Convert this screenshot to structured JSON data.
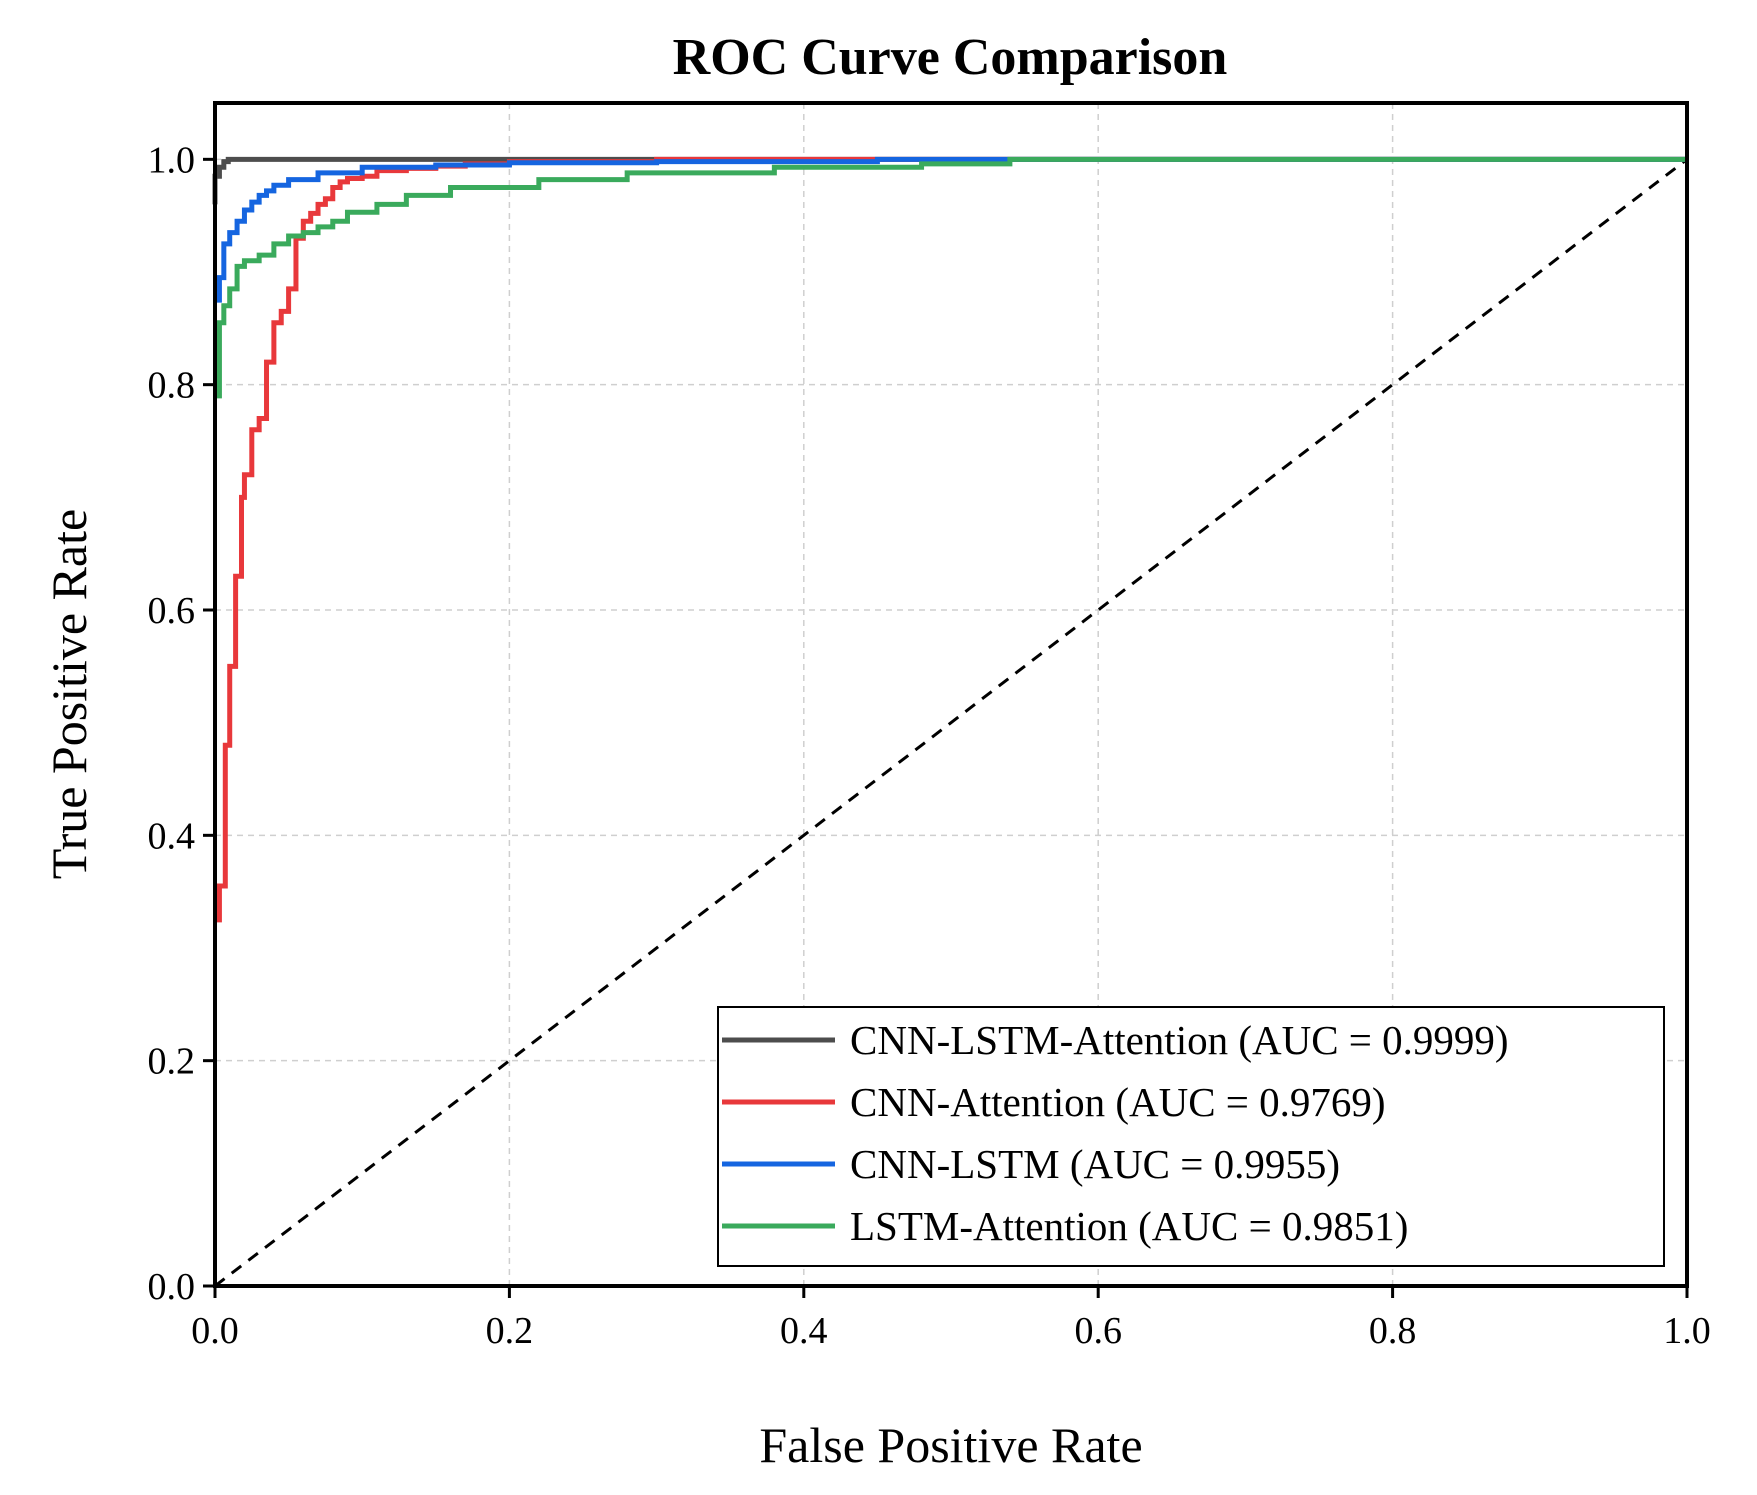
{
  "chart_data": {
    "type": "line",
    "title": "ROC Curve Comparison",
    "xlabel": "False Positive Rate",
    "ylabel": "True Positive Rate",
    "xlim": [
      0.0,
      1.0
    ],
    "ylim": [
      0.0,
      1.05
    ],
    "xticks": [
      0.0,
      0.2,
      0.4,
      0.6,
      0.8,
      1.0
    ],
    "yticks": [
      0.0,
      0.2,
      0.4,
      0.6,
      0.8,
      1.0
    ],
    "xtick_labels": [
      "0.0",
      "0.2",
      "0.4",
      "0.6",
      "0.8",
      "1.0"
    ],
    "ytick_labels": [
      "0.0",
      "0.2",
      "0.4",
      "0.6",
      "0.8",
      "1.0"
    ],
    "grid": true,
    "legend_position": "bottom-right",
    "reference_line": {
      "x": [
        0,
        1
      ],
      "y": [
        0,
        1
      ],
      "style": "dashed",
      "color": "#000000"
    },
    "series": [
      {
        "name": "CNN-LSTM-Attention (AUC = 0.9999)",
        "color": "#4d4d4d",
        "x": [
          0.0,
          0.0,
          0.003,
          0.003,
          0.006,
          0.006,
          0.009,
          0.009,
          1.0
        ],
        "y": [
          0.96,
          0.985,
          0.985,
          0.993,
          0.993,
          0.998,
          0.998,
          1.0,
          1.0
        ]
      },
      {
        "name": "CNN-Attention (AUC = 0.9769)",
        "color": "#e8383b",
        "x": [
          0.0,
          0.003,
          0.003,
          0.007,
          0.007,
          0.01,
          0.01,
          0.014,
          0.014,
          0.018,
          0.018,
          0.02,
          0.02,
          0.025,
          0.025,
          0.03,
          0.03,
          0.035,
          0.035,
          0.04,
          0.04,
          0.045,
          0.045,
          0.05,
          0.05,
          0.055,
          0.055,
          0.06,
          0.06,
          0.065,
          0.065,
          0.07,
          0.07,
          0.075,
          0.075,
          0.08,
          0.08,
          0.085,
          0.085,
          0.09,
          0.09,
          0.1,
          0.1,
          0.11,
          0.11,
          0.13,
          0.13,
          0.15,
          0.15,
          0.17,
          0.17,
          0.2,
          0.2,
          0.3,
          0.3,
          1.0
        ],
        "y": [
          0.325,
          0.325,
          0.355,
          0.355,
          0.48,
          0.48,
          0.55,
          0.55,
          0.63,
          0.63,
          0.7,
          0.7,
          0.72,
          0.72,
          0.76,
          0.76,
          0.77,
          0.77,
          0.82,
          0.82,
          0.855,
          0.855,
          0.865,
          0.865,
          0.885,
          0.885,
          0.93,
          0.93,
          0.945,
          0.945,
          0.952,
          0.952,
          0.96,
          0.96,
          0.965,
          0.965,
          0.975,
          0.975,
          0.98,
          0.98,
          0.983,
          0.983,
          0.985,
          0.985,
          0.99,
          0.99,
          0.992,
          0.992,
          0.994,
          0.994,
          0.996,
          0.996,
          0.998,
          0.998,
          1.0,
          1.0
        ]
      },
      {
        "name": "CNN-LSTM (AUC = 0.9955)",
        "color": "#1565e0",
        "x": [
          0.0,
          0.003,
          0.003,
          0.006,
          0.006,
          0.01,
          0.01,
          0.015,
          0.015,
          0.02,
          0.02,
          0.025,
          0.025,
          0.03,
          0.03,
          0.035,
          0.035,
          0.04,
          0.04,
          0.05,
          0.05,
          0.07,
          0.07,
          0.1,
          0.1,
          0.15,
          0.15,
          0.2,
          0.2,
          0.3,
          0.3,
          0.45,
          0.45,
          1.0
        ],
        "y": [
          0.875,
          0.875,
          0.895,
          0.895,
          0.925,
          0.925,
          0.935,
          0.935,
          0.945,
          0.945,
          0.955,
          0.955,
          0.962,
          0.962,
          0.968,
          0.968,
          0.972,
          0.972,
          0.977,
          0.977,
          0.982,
          0.982,
          0.988,
          0.988,
          0.993,
          0.993,
          0.995,
          0.995,
          0.997,
          0.997,
          0.998,
          0.998,
          1.0,
          1.0
        ]
      },
      {
        "name": "LSTM-Attention (AUC = 0.9851)",
        "color": "#3aaa5c",
        "x": [
          0.0,
          0.003,
          0.003,
          0.006,
          0.006,
          0.01,
          0.01,
          0.015,
          0.015,
          0.02,
          0.02,
          0.03,
          0.03,
          0.04,
          0.04,
          0.05,
          0.05,
          0.06,
          0.06,
          0.07,
          0.07,
          0.08,
          0.08,
          0.09,
          0.09,
          0.11,
          0.11,
          0.13,
          0.13,
          0.16,
          0.16,
          0.22,
          0.22,
          0.28,
          0.28,
          0.38,
          0.38,
          0.48,
          0.48,
          0.54,
          0.54,
          1.0
        ],
        "y": [
          0.79,
          0.79,
          0.855,
          0.855,
          0.87,
          0.87,
          0.885,
          0.885,
          0.905,
          0.905,
          0.91,
          0.91,
          0.915,
          0.915,
          0.925,
          0.925,
          0.932,
          0.932,
          0.935,
          0.935,
          0.94,
          0.94,
          0.945,
          0.945,
          0.953,
          0.953,
          0.96,
          0.96,
          0.968,
          0.968,
          0.975,
          0.975,
          0.982,
          0.982,
          0.988,
          0.988,
          0.993,
          0.993,
          0.996,
          0.996,
          1.0,
          1.0
        ]
      }
    ]
  }
}
